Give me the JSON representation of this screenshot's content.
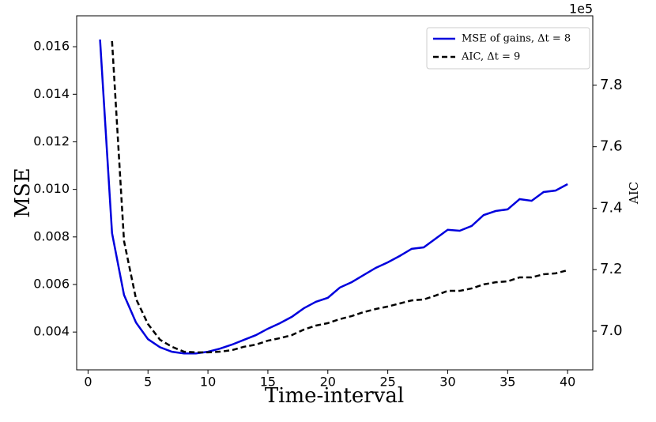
{
  "chart_data": {
    "type": "line",
    "x_label": "Time-interval",
    "y_label": "MSE",
    "y2_label": "AIC",
    "y2_offset_label": "1e5",
    "x": [
      1,
      2,
      3,
      4,
      5,
      6,
      7,
      8,
      9,
      10,
      11,
      12,
      13,
      14,
      15,
      16,
      17,
      18,
      19,
      20,
      21,
      22,
      23,
      24,
      25,
      26,
      27,
      28,
      29,
      30,
      31,
      32,
      33,
      34,
      35,
      36,
      37,
      38,
      39,
      40
    ],
    "series": [
      {
        "name": "MSE of gains, Δt = 8",
        "color": "#0000dd",
        "style": "solid",
        "values": [
          0.0163,
          0.00816,
          0.00556,
          0.0044,
          0.0037,
          0.00336,
          0.00317,
          0.0031,
          0.0031,
          0.00317,
          0.0033,
          0.00347,
          0.00367,
          0.00387,
          0.00414,
          0.00437,
          0.00464,
          0.005,
          0.00527,
          0.00544,
          0.00587,
          0.0061,
          0.0064,
          0.0067,
          0.00693,
          0.0072,
          0.0075,
          0.00756,
          0.00793,
          0.0083,
          0.00826,
          0.00846,
          0.00892,
          0.00909,
          0.00916,
          0.00959,
          0.00952,
          0.00989,
          0.00995,
          0.01022
        ]
      },
      {
        "name": "AIC, Δt = 9",
        "color": "#000000",
        "style": "dashed",
        "axis": "y2",
        "values": [
          null,
          794400,
          729300,
          710500,
          702300,
          697200,
          694900,
          693300,
          693100,
          693100,
          693300,
          693800,
          694900,
          695600,
          696900,
          697700,
          698700,
          700500,
          701800,
          702600,
          703900,
          704900,
          706200,
          707200,
          708000,
          709000,
          710000,
          710300,
          711600,
          713100,
          713100,
          713900,
          715200,
          715900,
          716200,
          717500,
          717500,
          718500,
          718800,
          719800
        ]
      }
    ],
    "xlim": [
      -0.95,
      42.1
    ],
    "xticks": [
      0,
      5,
      10,
      15,
      20,
      25,
      30,
      35,
      40
    ],
    "ylim": [
      0.00241,
      0.0173
    ],
    "yticks": [
      0.004,
      0.006,
      0.008,
      {
        "value": 0.01,
        "label": "0.010"
      },
      0.012,
      0.014,
      0.016
    ],
    "y2lim": [
      687400,
      802600
    ],
    "y2ticks": [
      {
        "value": 700000,
        "label": "7.0"
      },
      {
        "value": 720000,
        "label": "7.2"
      },
      {
        "value": 740000,
        "label": "7.4"
      },
      {
        "value": 760000,
        "label": "7.6"
      },
      {
        "value": 780000,
        "label": "7.8"
      }
    ],
    "legend": "upper right"
  }
}
